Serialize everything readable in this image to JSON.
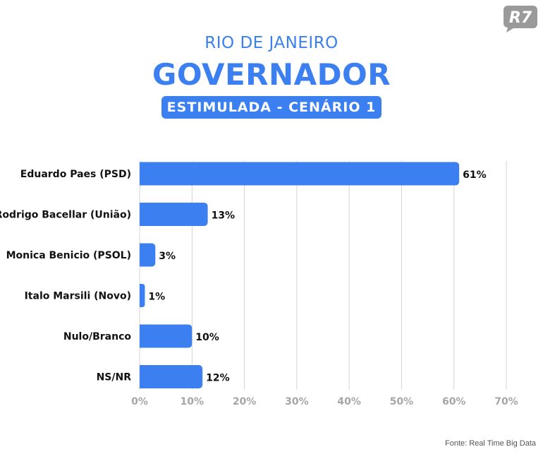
{
  "brand": {
    "logo_text": "R7"
  },
  "header": {
    "region": "RIO DE JANEIRO",
    "office": "GOVERNADOR",
    "scenario": "ESTIMULADA - CENÁRIO 1"
  },
  "source": "Fonte: Real Time Big Data",
  "colors": {
    "accent": "#3b7ff0",
    "grid": "#d4d4d4",
    "tick": "#a6a6a6",
    "logo": "#9a9a9a"
  },
  "chart_data": {
    "type": "bar",
    "orientation": "horizontal",
    "categories": [
      "Eduardo Paes (PSD)",
      "Rodrigo Bacellar (União)",
      "Monica Benicio (PSOL)",
      "Italo Marsili (Novo)",
      "Nulo/Branco",
      "NS/NR"
    ],
    "values": [
      61,
      13,
      3,
      1,
      10,
      12
    ],
    "value_labels": [
      "61%",
      "13%",
      "3%",
      "1%",
      "10%",
      "12%"
    ],
    "xlim": [
      0,
      70
    ],
    "xticks": [
      0,
      10,
      20,
      30,
      40,
      50,
      60,
      70
    ],
    "xtick_labels": [
      "0%",
      "10%",
      "20%",
      "30%",
      "40%",
      "50%",
      "60%",
      "70%"
    ],
    "grid": true,
    "legend": "none"
  }
}
